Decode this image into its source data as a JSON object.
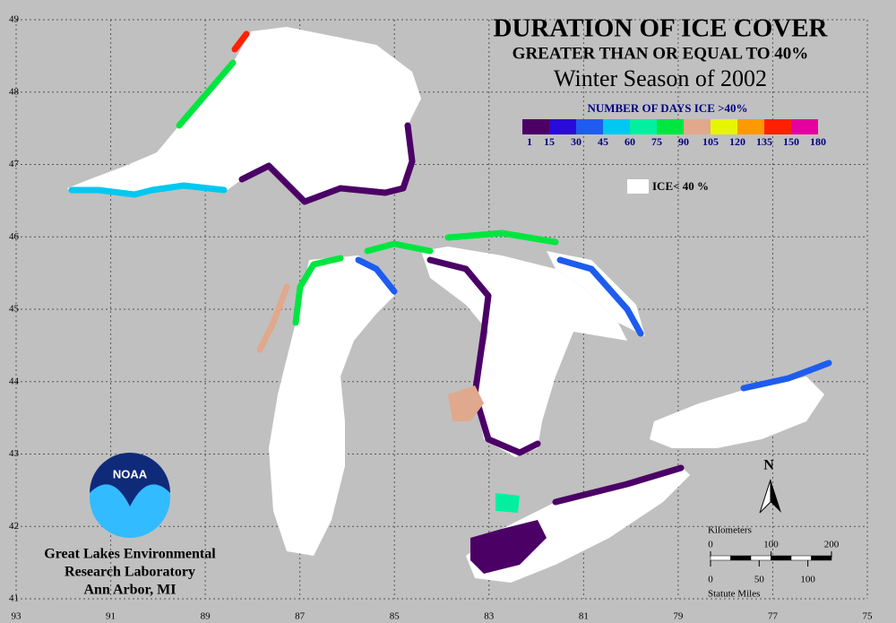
{
  "title": "DURATION OF ICE COVER",
  "subtitle": "GREATER THAN OR EQUAL TO 40%",
  "season": "Winter Season of 2002",
  "legend": {
    "title": "NUMBER OF DAYS ICE >40%",
    "labels": [
      1,
      15,
      30,
      45,
      60,
      75,
      90,
      105,
      120,
      135,
      150,
      180
    ],
    "colors": [
      "#4b0066",
      "#2a0ad9",
      "#1e5cf0",
      "#00c8f0",
      "#00f0a0",
      "#00e640",
      "#e0a88c",
      "#e6f500",
      "#ff9900",
      "#ff2000",
      "#e600a0"
    ]
  },
  "no_ice_label": "ICE< 40 %",
  "latitudes": [
    49,
    48,
    47,
    46,
    45,
    44,
    43,
    42,
    41
  ],
  "longitudes": [
    93,
    91,
    89,
    87,
    85,
    83,
    81,
    79,
    77,
    75
  ],
  "north": "N",
  "scale": {
    "km_label": "Kilometers",
    "km_ticks": [
      0,
      100,
      200
    ],
    "mile_label": "Statute Miles",
    "mile_ticks": [
      0,
      50,
      100
    ]
  },
  "logo": "NOAA",
  "credit": [
    "Great Lakes Environmental",
    "Research Laboratory",
    "Ann Arbor, MI"
  ]
}
